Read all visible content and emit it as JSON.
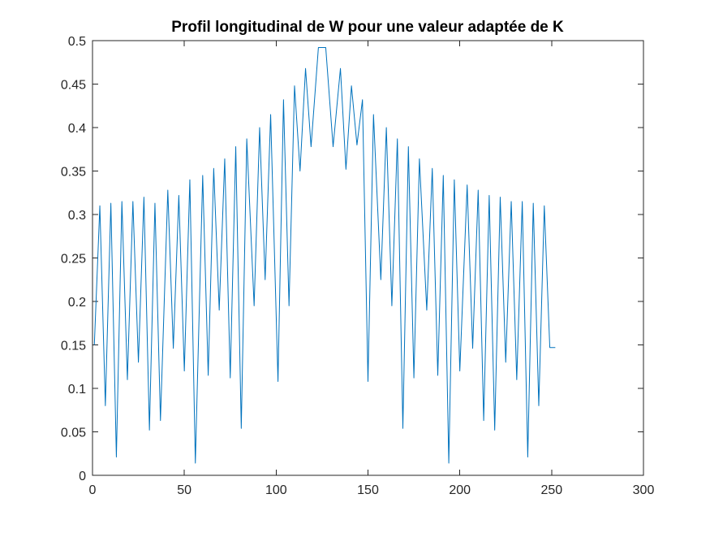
{
  "chart_data": {
    "type": "line",
    "title": "Profil longitudinal de W pour une valeur adaptée de K",
    "xlabel": "",
    "ylabel": "",
    "xlim": [
      0,
      300
    ],
    "ylim": [
      0,
      0.5
    ],
    "xticks": [
      0,
      50,
      100,
      150,
      200,
      250,
      300
    ],
    "yticks": [
      0,
      0.05,
      0.1,
      0.15,
      0.2,
      0.25,
      0.3,
      0.35,
      0.4,
      0.45,
      0.5
    ],
    "xtick_labels": [
      "0",
      "50",
      "100",
      "150",
      "200",
      "250",
      "300"
    ],
    "ytick_labels": [
      "0",
      "0.05",
      "0.1",
      "0.15",
      "0.2",
      "0.25",
      "0.3",
      "0.35",
      "0.4",
      "0.45",
      "0.5"
    ],
    "grid": false,
    "box": true,
    "line_color": "#0072BD",
    "series": [
      {
        "x": [
          1,
          4,
          7,
          10,
          13,
          16,
          19,
          22,
          25,
          28,
          31,
          34,
          37,
          41,
          44,
          47,
          50,
          53,
          56,
          60,
          63,
          66,
          69,
          72,
          75,
          78,
          81,
          84,
          88,
          91,
          94,
          97,
          101,
          104,
          107,
          110,
          113,
          116,
          119,
          123,
          127,
          131,
          135,
          138,
          141,
          144,
          147,
          150,
          153,
          157,
          160,
          163,
          166,
          169,
          172,
          175,
          178,
          182,
          185,
          188,
          191,
          194,
          197,
          200,
          204,
          207,
          210,
          213,
          216,
          219,
          222,
          225,
          228,
          231,
          234,
          237,
          240,
          243,
          246,
          249,
          252
        ],
        "y": [
          0.15,
          0.31,
          0.08,
          0.313,
          0.021,
          0.315,
          0.11,
          0.315,
          0.13,
          0.32,
          0.052,
          0.313,
          0.063,
          0.328,
          0.146,
          0.322,
          0.12,
          0.34,
          0.014,
          0.345,
          0.115,
          0.353,
          0.19,
          0.364,
          0.112,
          0.378,
          0.054,
          0.387,
          0.195,
          0.4,
          0.225,
          0.415,
          0.108,
          0.432,
          0.195,
          0.448,
          0.35,
          0.468,
          0.378,
          0.492,
          0.492,
          0.378,
          0.468,
          0.352,
          0.448,
          0.38,
          0.432,
          0.108,
          0.415,
          0.225,
          0.4,
          0.195,
          0.387,
          0.054,
          0.378,
          0.112,
          0.364,
          0.19,
          0.353,
          0.115,
          0.345,
          0.014,
          0.34,
          0.12,
          0.334,
          0.146,
          0.328,
          0.063,
          0.322,
          0.052,
          0.32,
          0.13,
          0.315,
          0.11,
          0.315,
          0.021,
          0.313,
          0.08,
          0.31,
          0.147,
          0.147
        ]
      }
    ]
  }
}
